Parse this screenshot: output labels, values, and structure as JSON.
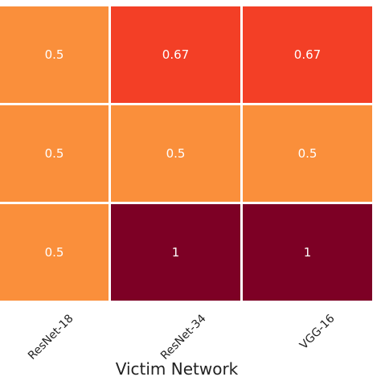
{
  "chart_data": {
    "type": "heatmap",
    "title": "",
    "xlabel": "Victim Network",
    "ylabel": "",
    "x_categories": [
      "ResNet-18",
      "ResNet-34",
      "VGG-16"
    ],
    "y_categories": [],
    "values": [
      [
        0.5,
        0.67,
        0.67
      ],
      [
        0.5,
        0.5,
        0.5
      ],
      [
        0.5,
        1,
        1
      ]
    ],
    "cell_labels": [
      [
        "0.5",
        "0.67",
        "0.67"
      ],
      [
        "0.5",
        "0.5",
        "0.5"
      ],
      [
        "0.5",
        "1",
        "1"
      ]
    ],
    "colormap": {
      "0.5": "#fa8f3b",
      "0.67": "#f33f26",
      "1": "#7d0025"
    },
    "grid_color": "#ffffff",
    "colorbar": false
  }
}
